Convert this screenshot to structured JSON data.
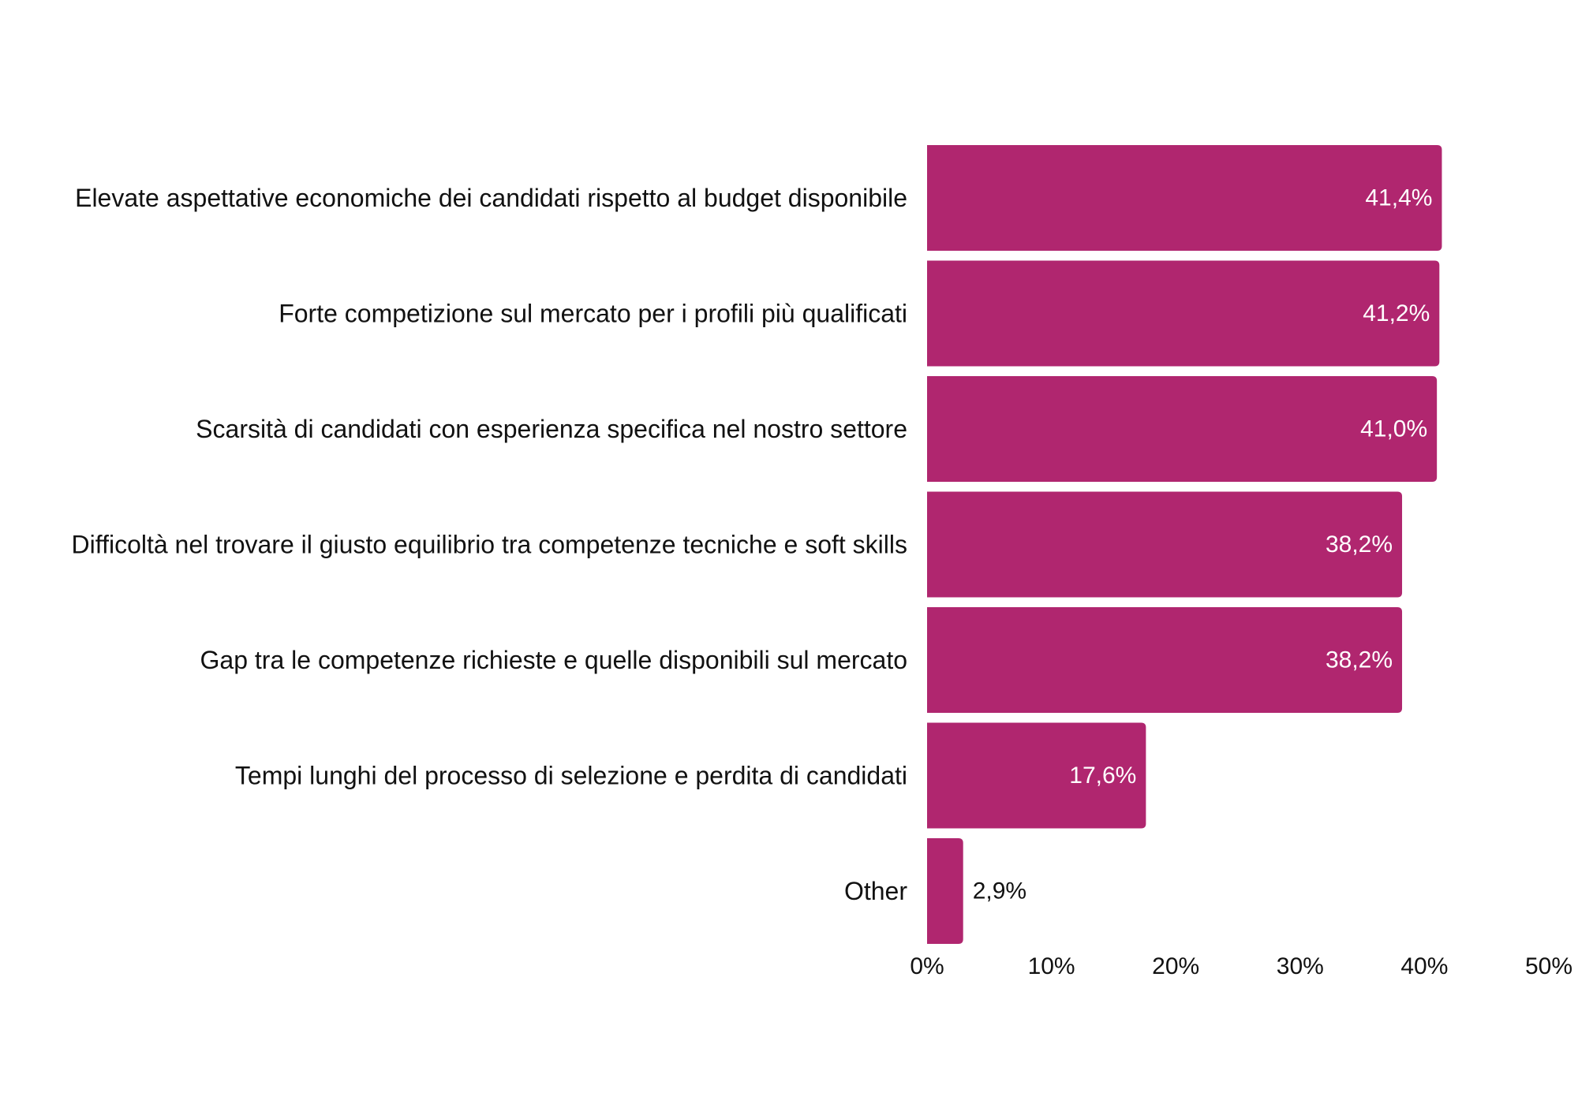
{
  "chart_data": {
    "type": "bar",
    "orientation": "horizontal",
    "categories": [
      "Elevate aspettative economiche dei candidati rispetto al budget disponibile",
      "Forte competizione sul mercato per i profili più qualificati",
      "Scarsità di candidati con esperienza specifica nel nostro settore",
      "Difficoltà nel trovare il giusto equilibrio tra competenze tecniche e soft skills",
      "Gap tra le competenze richieste e quelle disponibili sul mercato",
      "Tempi lunghi del processo di selezione e perdita di candidati",
      "Other"
    ],
    "values": [
      41.4,
      41.2,
      41.0,
      38.2,
      38.2,
      17.6,
      2.9
    ],
    "value_labels": [
      "41,4%",
      "41,2%",
      "41,0%",
      "38,2%",
      "38,2%",
      "17,6%",
      "2,9%"
    ],
    "xlim": [
      0,
      50
    ],
    "ticks": [
      0,
      10,
      20,
      30,
      40,
      50
    ],
    "tick_labels": [
      "0%",
      "10%",
      "20%",
      "30%",
      "40%",
      "50%"
    ],
    "grid": false,
    "bar_color": "#b0266f",
    "inside_label_color": "#ffffff",
    "outside_label_color": "#111111"
  }
}
